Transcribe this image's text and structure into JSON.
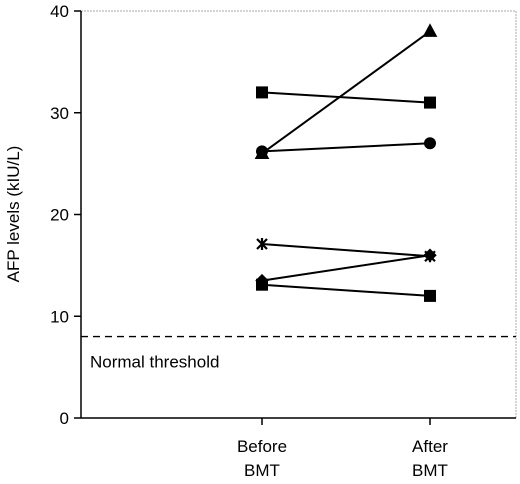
{
  "chart_data": {
    "type": "line",
    "title": "",
    "xlabel": "",
    "ylabel": "AFP levels (kIU/L)",
    "categories": [
      [
        "Before",
        "BMT"
      ],
      [
        "After",
        "BMT"
      ]
    ],
    "ylim": [
      0,
      40
    ],
    "yticks": [
      0,
      10,
      20,
      30,
      40
    ],
    "grid": false,
    "legend": "none",
    "threshold": {
      "value": 8,
      "label": "Normal threshold",
      "style": "dashed"
    },
    "series": [
      {
        "marker": "triangle",
        "values": [
          26,
          38
        ]
      },
      {
        "marker": "square",
        "values": [
          32,
          31
        ]
      },
      {
        "marker": "circle",
        "values": [
          26.2,
          27
        ]
      },
      {
        "marker": "star",
        "values": [
          17.1,
          15.9
        ]
      },
      {
        "marker": "diamond",
        "values": [
          13.5,
          16
        ]
      },
      {
        "marker": "square",
        "values": [
          13.1,
          12
        ]
      }
    ]
  }
}
